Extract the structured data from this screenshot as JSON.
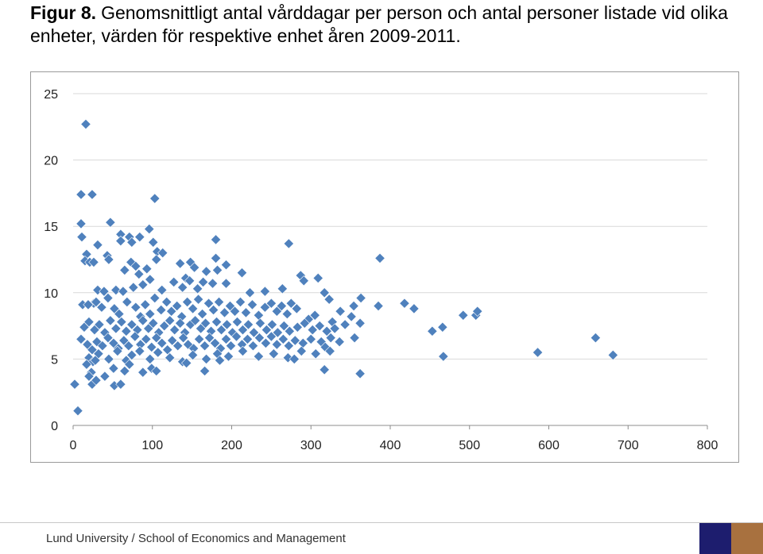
{
  "title": {
    "figure_label": "Figur 8.",
    "text": "Genomsnittligt antal vårddagar per person och antal personer listade vid olika enheter, värden för respektive enhet åren 2009-2011."
  },
  "footer": {
    "text": "Lund University / School of Economics and Management"
  },
  "colors": {
    "marker": "#4f81bd",
    "grid": "#d9d9d9",
    "logo_blue": "#1d1d6e",
    "logo_brown": "#a8713f"
  },
  "chart_data": {
    "type": "scatter",
    "xlim": [
      0,
      800
    ],
    "ylim": [
      0,
      25
    ],
    "x_ticks": [
      "0",
      "100",
      "200",
      "300",
      "400",
      "500",
      "600",
      "700",
      "800"
    ],
    "y_ticks": [
      "0",
      "5",
      "10",
      "15",
      "20",
      "25"
    ],
    "grid": "horizontal",
    "legend": "none",
    "points": [
      [
        16,
        22.7
      ],
      [
        10,
        17.4
      ],
      [
        24,
        17.4
      ],
      [
        103,
        17.1
      ],
      [
        10,
        15.2
      ],
      [
        47,
        15.3
      ],
      [
        11,
        14.2
      ],
      [
        96,
        14.8
      ],
      [
        60,
        14.4
      ],
      [
        71,
        14.2
      ],
      [
        84,
        14.2
      ],
      [
        60,
        13.9
      ],
      [
        74,
        13.8
      ],
      [
        101,
        13.8
      ],
      [
        31,
        13.6
      ],
      [
        106,
        13.1
      ],
      [
        113,
        13.0
      ],
      [
        180,
        14.0
      ],
      [
        272,
        13.7
      ],
      [
        387,
        12.6
      ],
      [
        17,
        12.9
      ],
      [
        15,
        12.4
      ],
      [
        21,
        12.3
      ],
      [
        26,
        12.3
      ],
      [
        43,
        12.8
      ],
      [
        45,
        12.5
      ],
      [
        73,
        12.3
      ],
      [
        79,
        12.0
      ],
      [
        105,
        12.5
      ],
      [
        135,
        12.2
      ],
      [
        148,
        12.3
      ],
      [
        153,
        11.9
      ],
      [
        180,
        12.6
      ],
      [
        193,
        12.1
      ],
      [
        65,
        11.7
      ],
      [
        93,
        11.8
      ],
      [
        83,
        11.4
      ],
      [
        142,
        11.1
      ],
      [
        168,
        11.6
      ],
      [
        182,
        11.7
      ],
      [
        213,
        11.5
      ],
      [
        287,
        11.3
      ],
      [
        309,
        11.1
      ],
      [
        291,
        10.9
      ],
      [
        26,
        9.2
      ],
      [
        31,
        10.2
      ],
      [
        39,
        10.1
      ],
      [
        54,
        10.2
      ],
      [
        63,
        10.1
      ],
      [
        76,
        10.4
      ],
      [
        88,
        10.6
      ],
      [
        97,
        11.0
      ],
      [
        112,
        10.2
      ],
      [
        127,
        10.8
      ],
      [
        138,
        10.4
      ],
      [
        147,
        10.9
      ],
      [
        157,
        10.3
      ],
      [
        164,
        10.8
      ],
      [
        176,
        10.7
      ],
      [
        193,
        10.7
      ],
      [
        223,
        10.0
      ],
      [
        242,
        10.1
      ],
      [
        264,
        10.3
      ],
      [
        317,
        10.0
      ],
      [
        323,
        9.5
      ],
      [
        363,
        9.6
      ],
      [
        385,
        9.0
      ],
      [
        418,
        9.2
      ],
      [
        430,
        8.8
      ],
      [
        282,
        8.8
      ],
      [
        305,
        8.3
      ],
      [
        337,
        8.6
      ],
      [
        351,
        8.2
      ],
      [
        354,
        9.0
      ],
      [
        12,
        9.1
      ],
      [
        19,
        9.1
      ],
      [
        29,
        9.3
      ],
      [
        36,
        8.9
      ],
      [
        44,
        9.6
      ],
      [
        52,
        8.8
      ],
      [
        58,
        8.4
      ],
      [
        68,
        9.3
      ],
      [
        79,
        8.9
      ],
      [
        85,
        8.2
      ],
      [
        91,
        9.1
      ],
      [
        97,
        8.4
      ],
      [
        103,
        9.6
      ],
      [
        111,
        8.7
      ],
      [
        118,
        9.3
      ],
      [
        124,
        8.6
      ],
      [
        131,
        9.0
      ],
      [
        137,
        8.2
      ],
      [
        144,
        9.3
      ],
      [
        151,
        8.8
      ],
      [
        158,
        9.5
      ],
      [
        163,
        8.4
      ],
      [
        171,
        9.2
      ],
      [
        177,
        8.7
      ],
      [
        184,
        9.3
      ],
      [
        191,
        8.5
      ],
      [
        198,
        9.0
      ],
      [
        204,
        8.6
      ],
      [
        211,
        9.3
      ],
      [
        218,
        8.5
      ],
      [
        226,
        9.1
      ],
      [
        234,
        8.3
      ],
      [
        242,
        8.9
      ],
      [
        250,
        9.2
      ],
      [
        257,
        8.6
      ],
      [
        263,
        9.0
      ],
      [
        270,
        8.4
      ],
      [
        275,
        9.2
      ],
      [
        297,
        8.0
      ],
      [
        327,
        7.8
      ],
      [
        343,
        7.6
      ],
      [
        362,
        7.7
      ],
      [
        14,
        7.4
      ],
      [
        20,
        7.8
      ],
      [
        27,
        7.2
      ],
      [
        33,
        7.6
      ],
      [
        40,
        7.0
      ],
      [
        47,
        7.9
      ],
      [
        54,
        7.3
      ],
      [
        61,
        7.8
      ],
      [
        67,
        7.1
      ],
      [
        74,
        7.6
      ],
      [
        81,
        7.2
      ],
      [
        88,
        7.9
      ],
      [
        95,
        7.3
      ],
      [
        101,
        7.7
      ],
      [
        108,
        7.0
      ],
      [
        115,
        7.5
      ],
      [
        122,
        7.9
      ],
      [
        128,
        7.2
      ],
      [
        135,
        7.7
      ],
      [
        141,
        7.0
      ],
      [
        148,
        7.6
      ],
      [
        154,
        7.9
      ],
      [
        161,
        7.3
      ],
      [
        167,
        7.7
      ],
      [
        174,
        7.1
      ],
      [
        181,
        7.8
      ],
      [
        187,
        7.2
      ],
      [
        194,
        7.6
      ],
      [
        201,
        7.0
      ],
      [
        207,
        7.8
      ],
      [
        214,
        7.2
      ],
      [
        221,
        7.6
      ],
      [
        228,
        7.0
      ],
      [
        236,
        7.7
      ],
      [
        244,
        7.2
      ],
      [
        251,
        7.6
      ],
      [
        258,
        7.0
      ],
      [
        266,
        7.5
      ],
      [
        273,
        7.1
      ],
      [
        283,
        7.4
      ],
      [
        292,
        7.7
      ],
      [
        302,
        7.2
      ],
      [
        311,
        7.5
      ],
      [
        320,
        7.1
      ],
      [
        330,
        7.3
      ],
      [
        453,
        7.1
      ],
      [
        466,
        7.4
      ],
      [
        492,
        8.3
      ],
      [
        508,
        8.3
      ],
      [
        510,
        8.6
      ],
      [
        659,
        6.6
      ],
      [
        10,
        6.5
      ],
      [
        18,
        6.1
      ],
      [
        24,
        5.7
      ],
      [
        30,
        6.3
      ],
      [
        37,
        6.0
      ],
      [
        44,
        6.6
      ],
      [
        51,
        6.2
      ],
      [
        57,
        5.8
      ],
      [
        64,
        6.4
      ],
      [
        70,
        6.0
      ],
      [
        78,
        6.7
      ],
      [
        85,
        6.1
      ],
      [
        92,
        6.5
      ],
      [
        99,
        5.9
      ],
      [
        105,
        6.6
      ],
      [
        112,
        6.2
      ],
      [
        119,
        5.7
      ],
      [
        125,
        6.4
      ],
      [
        132,
        6.0
      ],
      [
        139,
        6.6
      ],
      [
        145,
        6.1
      ],
      [
        152,
        5.8
      ],
      [
        159,
        6.5
      ],
      [
        166,
        6.0
      ],
      [
        172,
        6.6
      ],
      [
        179,
        6.2
      ],
      [
        186,
        5.8
      ],
      [
        193,
        6.5
      ],
      [
        199,
        6.0
      ],
      [
        206,
        6.7
      ],
      [
        213,
        6.1
      ],
      [
        220,
        6.5
      ],
      [
        227,
        6.0
      ],
      [
        235,
        6.6
      ],
      [
        243,
        6.2
      ],
      [
        250,
        6.7
      ],
      [
        257,
        6.1
      ],
      [
        265,
        6.5
      ],
      [
        272,
        6.0
      ],
      [
        280,
        6.4
      ],
      [
        290,
        6.2
      ],
      [
        300,
        6.5
      ],
      [
        313,
        6.3
      ],
      [
        325,
        6.6
      ],
      [
        336,
        6.3
      ],
      [
        355,
        6.6
      ],
      [
        20,
        5.1
      ],
      [
        25,
        4.8
      ],
      [
        32,
        5.4
      ],
      [
        45,
        5.0
      ],
      [
        56,
        5.6
      ],
      [
        67,
        4.9
      ],
      [
        74,
        5.3
      ],
      [
        84,
        5.6
      ],
      [
        97,
        5.0
      ],
      [
        107,
        5.5
      ],
      [
        122,
        5.1
      ],
      [
        138,
        4.8
      ],
      [
        151,
        5.3
      ],
      [
        168,
        5.0
      ],
      [
        182,
        5.4
      ],
      [
        196,
        5.2
      ],
      [
        214,
        5.6
      ],
      [
        234,
        5.2
      ],
      [
        253,
        5.4
      ],
      [
        271,
        5.1
      ],
      [
        288,
        5.6
      ],
      [
        306,
        5.4
      ],
      [
        318,
        5.9
      ],
      [
        324,
        5.6
      ],
      [
        17,
        4.6
      ],
      [
        23,
        4.0
      ],
      [
        28,
        4.9
      ],
      [
        51,
        4.3
      ],
      [
        65,
        4.1
      ],
      [
        71,
        4.6
      ],
      [
        88,
        4.0
      ],
      [
        99,
        4.3
      ],
      [
        105,
        4.1
      ],
      [
        143,
        4.7
      ],
      [
        166,
        4.1
      ],
      [
        185,
        4.9
      ],
      [
        279,
        5.0
      ],
      [
        317,
        4.2
      ],
      [
        362,
        3.9
      ],
      [
        467,
        5.2
      ],
      [
        586,
        5.5
      ],
      [
        681,
        5.3
      ],
      [
        20,
        3.7
      ],
      [
        24,
        3.1
      ],
      [
        29,
        3.4
      ],
      [
        40,
        3.7
      ],
      [
        52,
        3.0
      ],
      [
        60,
        3.1
      ],
      [
        2,
        3.1
      ],
      [
        6,
        1.1
      ]
    ]
  }
}
